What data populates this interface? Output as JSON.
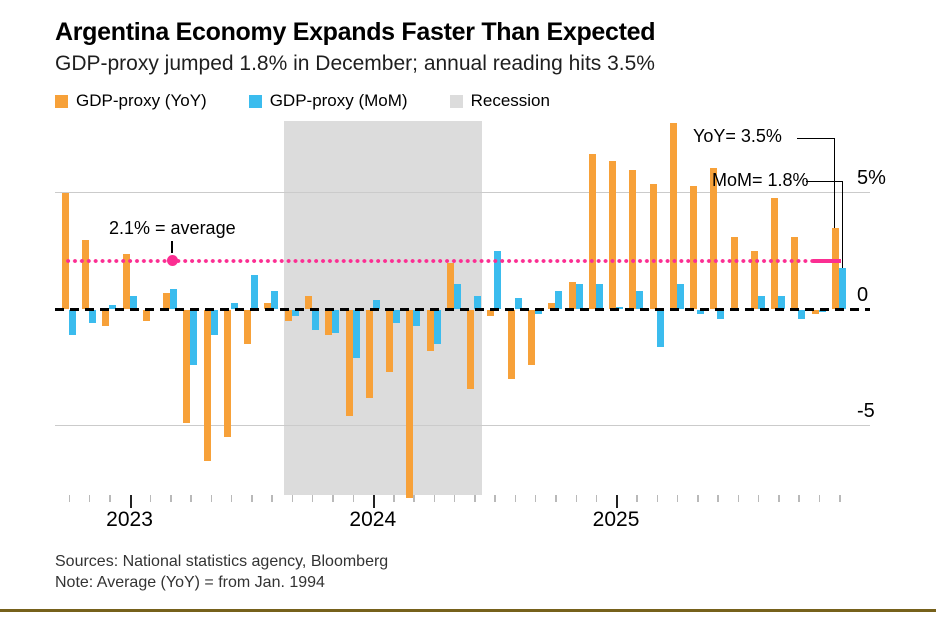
{
  "header": {
    "title": "Argentina Economy Expands Faster Than Expected",
    "subtitle": "GDP-proxy jumped 1.8% in December; annual reading hits 3.5%"
  },
  "legend": [
    {
      "label": "GDP-proxy (YoY)",
      "color": "#f7a139"
    },
    {
      "label": "GDP-proxy (MoM)",
      "color": "#3bbcee"
    },
    {
      "label": "Recession",
      "color": "#dcdcdc"
    }
  ],
  "annotations": {
    "average_label": "2.1% = average",
    "yoy_callout": "YoY= 3.5%",
    "mom_callout": "MoM= 1.8%"
  },
  "axis": {
    "y_ticks": [
      {
        "label": "5%",
        "value": 5
      },
      {
        "label": "0",
        "value": 0
      },
      {
        "label": "-5",
        "value": -5
      }
    ],
    "x_year_labels": [
      "2023",
      "2024",
      "2025"
    ]
  },
  "footer": {
    "sources": "Sources: National statistics agency, Bloomberg",
    "note": "Note: Average (YoY) = from Jan. 1994"
  },
  "chart_data": {
    "type": "bar",
    "x": [
      "2022-10",
      "2022-11",
      "2022-12",
      "2023-01",
      "2023-02",
      "2023-03",
      "2023-04",
      "2023-05",
      "2023-06",
      "2023-07",
      "2023-08",
      "2023-09",
      "2023-10",
      "2023-11",
      "2023-12",
      "2024-01",
      "2024-02",
      "2024-03",
      "2024-04",
      "2024-05",
      "2024-06",
      "2024-07",
      "2024-08",
      "2024-09",
      "2024-10",
      "2024-11",
      "2024-12",
      "2025-01",
      "2025-02",
      "2025-03",
      "2025-04",
      "2025-05",
      "2025-06",
      "2025-07",
      "2025-08",
      "2025-09",
      "2025-10",
      "2025-11",
      "2025-12"
    ],
    "series": [
      {
        "name": "GDP-proxy (YoY)",
        "color": "#f7a139",
        "values": [
          5.0,
          3.0,
          -0.7,
          2.4,
          -0.5,
          0.7,
          -4.9,
          -6.5,
          -5.5,
          -1.5,
          0.3,
          -0.5,
          0.6,
          -1.1,
          -4.6,
          -3.8,
          -2.7,
          -8.1,
          -1.8,
          2.0,
          -3.4,
          -0.3,
          -3.0,
          -2.4,
          0.3,
          1.2,
          6.7,
          6.4,
          6.0,
          5.4,
          8.0,
          5.3,
          6.1,
          3.1,
          2.5,
          4.8,
          3.1,
          -0.2,
          3.5
        ]
      },
      {
        "name": "GDP-proxy (MoM)",
        "color": "#3bbcee",
        "values": [
          -1.1,
          -0.6,
          0.2,
          0.6,
          0.0,
          0.9,
          -2.4,
          -1.1,
          0.3,
          1.5,
          0.8,
          -0.3,
          -0.9,
          -1.0,
          -2.1,
          0.4,
          -0.6,
          -0.7,
          -1.5,
          1.1,
          0.6,
          2.5,
          0.5,
          -0.2,
          0.8,
          1.1,
          1.1,
          0.1,
          0.8,
          -1.6,
          1.1,
          -0.2,
          -0.4,
          0.0,
          0.6,
          0.6,
          -0.4,
          -0.1,
          1.8
        ]
      }
    ],
    "average_line": {
      "value": 2.1,
      "label": "2.1% = average",
      "color": "#fb2e92"
    },
    "recession_band": {
      "start": "2023-09",
      "end": "2024-06",
      "color": "#dcdcdc"
    },
    "latest": {
      "yoy": 3.5,
      "mom": 1.8
    },
    "ylim": [
      -8.1,
      8.1
    ],
    "gridlines_y": [
      5,
      -5
    ],
    "title": "Argentina Economy Expands Faster Than Expected",
    "ylabel": "%",
    "legend_position": "top"
  }
}
